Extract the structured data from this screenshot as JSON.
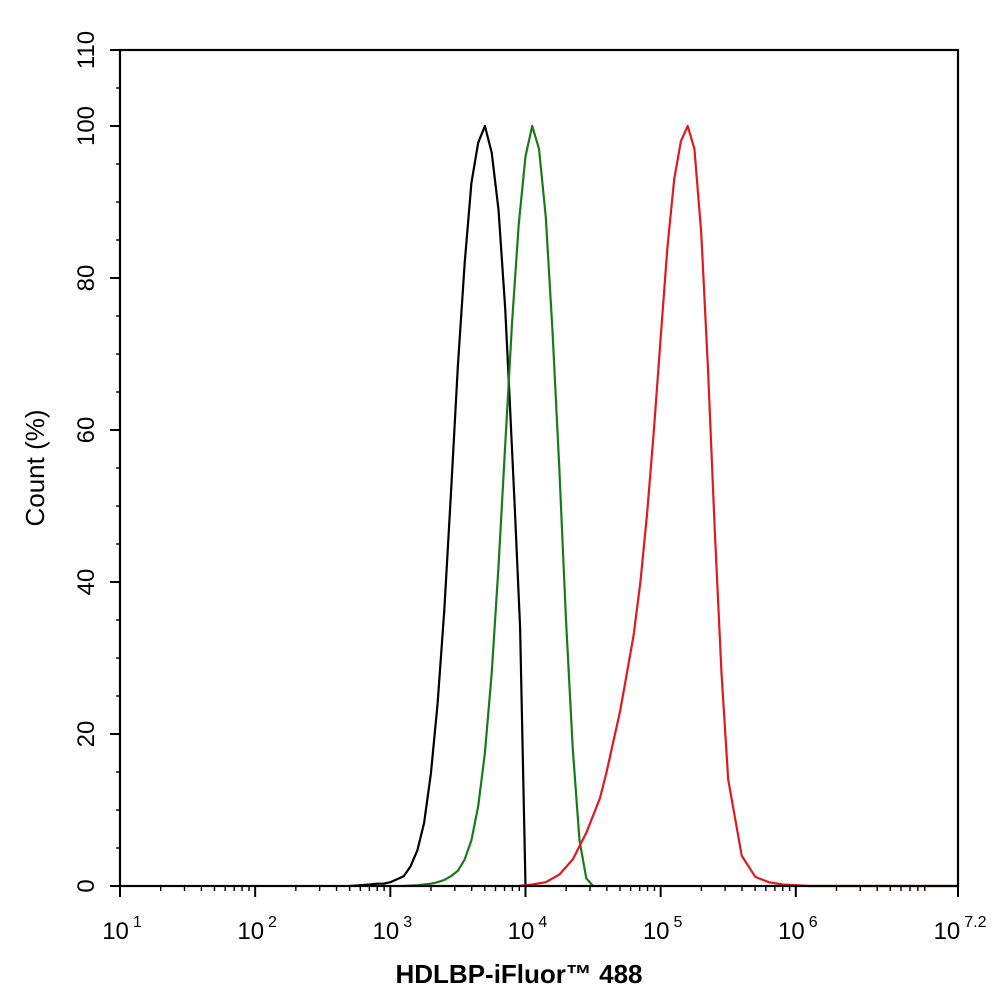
{
  "chart_data": {
    "type": "line",
    "title": "",
    "xlabel": "HDLBP-iFluor™ 488",
    "ylabel": "Count  (%)",
    "x_scale": "log10",
    "xlim": [
      1,
      7.2
    ],
    "ylim": [
      0,
      110
    ],
    "x_ticks": [
      {
        "base": "10",
        "exp": "1",
        "value": 1
      },
      {
        "base": "10",
        "exp": "2",
        "value": 2
      },
      {
        "base": "10",
        "exp": "3",
        "value": 3
      },
      {
        "base": "10",
        "exp": "4",
        "value": 4
      },
      {
        "base": "10",
        "exp": "5",
        "value": 5
      },
      {
        "base": "10",
        "exp": "6",
        "value": 6
      },
      {
        "base": "10",
        "exp": "7.2",
        "value": 7.2
      }
    ],
    "y_ticks": [
      0,
      20,
      40,
      60,
      80,
      100,
      110
    ],
    "grid": false,
    "legend": "none",
    "series": [
      {
        "color": "#000000",
        "x": [
          2.7,
          2.78,
          2.85,
          2.9,
          2.95,
          3.0,
          3.05,
          3.1,
          3.15,
          3.2,
          3.25,
          3.3,
          3.35,
          3.4,
          3.45,
          3.5,
          3.55,
          3.6,
          3.65,
          3.7,
          3.75,
          3.8,
          3.85,
          3.88,
          3.92,
          3.96,
          4.0
        ],
        "y": [
          0.0,
          0.1,
          0.2,
          0.3,
          0.3,
          0.5,
          0.9,
          1.3,
          2.6,
          4.7,
          8.3,
          14.8,
          24.0,
          36.5,
          52.0,
          68.5,
          82.0,
          92.5,
          97.8,
          100.0,
          96.5,
          89.0,
          76.0,
          65.0,
          50.0,
          34.0,
          0.0
        ]
      },
      {
        "color": "#1a7a1a",
        "x": [
          3.1,
          3.2,
          3.25,
          3.3,
          3.35,
          3.4,
          3.45,
          3.5,
          3.55,
          3.6,
          3.65,
          3.7,
          3.75,
          3.8,
          3.85,
          3.9,
          3.95,
          4.0,
          4.05,
          4.1,
          4.15,
          4.2,
          4.25,
          4.3,
          4.35,
          4.4,
          4.45,
          4.5
        ],
        "y": [
          0.0,
          0.1,
          0.2,
          0.3,
          0.5,
          0.8,
          1.3,
          2.0,
          3.5,
          6.0,
          10.5,
          17.5,
          28.0,
          42.0,
          58.0,
          74.0,
          87.0,
          96.0,
          100.0,
          97.0,
          88.0,
          73.0,
          55.0,
          35.0,
          18.0,
          6.0,
          1.0,
          0.0
        ]
      },
      {
        "color": "#e0191f",
        "x": [
          3.95,
          4.05,
          4.15,
          4.25,
          4.35,
          4.45,
          4.55,
          4.6,
          4.65,
          4.7,
          4.75,
          4.8,
          4.85,
          4.9,
          4.95,
          5.0,
          5.05,
          5.1,
          5.15,
          5.2,
          5.25,
          5.3,
          5.35,
          5.4,
          5.45,
          5.5,
          5.6,
          5.7,
          5.8,
          5.9,
          6.0,
          6.1,
          6.2,
          6.3,
          6.4,
          6.5,
          6.6,
          6.7,
          6.8,
          7.0,
          7.2
        ],
        "y": [
          0.0,
          0.2,
          0.5,
          1.5,
          3.5,
          7.0,
          11.5,
          15.0,
          19.0,
          23.0,
          28.0,
          33.0,
          40.0,
          49.0,
          60.0,
          72.0,
          84.0,
          93.0,
          98.0,
          100.0,
          97.0,
          86.0,
          68.0,
          47.0,
          28.0,
          14.0,
          4.0,
          1.2,
          0.5,
          0.2,
          0.1,
          0.0,
          0.0,
          0.0,
          0.0,
          0.0,
          0.0,
          0.0,
          0.0,
          0.0,
          0.0
        ]
      }
    ]
  }
}
